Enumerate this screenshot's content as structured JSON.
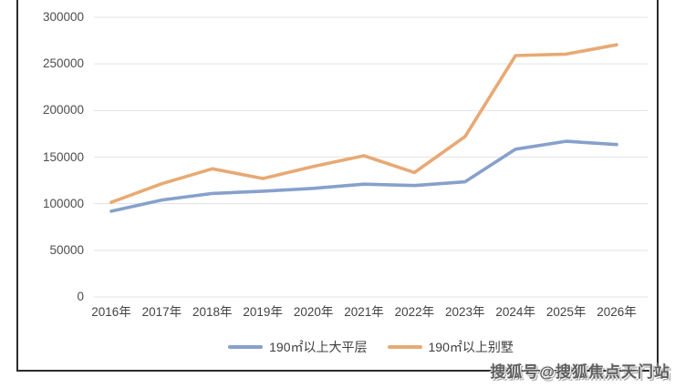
{
  "watermark": {
    "text": "搜狐号@搜狐焦点天门站"
  },
  "colors": {
    "grid": "#e3e3e3",
    "frame": "#2b2b2b",
    "tick_text": "#4d4d4d",
    "background": "#ffffff",
    "series_flat": "#87A0CC",
    "series_villa": "#E8A974"
  },
  "chart_data": {
    "type": "line",
    "title": "",
    "xlabel": "",
    "ylabel": "",
    "categories": [
      "2016年",
      "2017年",
      "2018年",
      "2019年",
      "2020年",
      "2021年",
      "2022年",
      "2023年",
      "2024年",
      "2025年",
      "2026年"
    ],
    "series": [
      {
        "name": "190㎡以上大平层",
        "color": "#87A0CC",
        "values": [
          92000,
          104000,
          111000,
          113500,
          116500,
          121000,
          119500,
          123500,
          158500,
          167000,
          163500
        ]
      },
      {
        "name": "190㎡以上别墅",
        "color": "#E8A974",
        "values": [
          101500,
          121500,
          137500,
          127000,
          140000,
          151500,
          133500,
          172000,
          259000,
          260500,
          270500
        ]
      }
    ],
    "ylim": [
      0,
      300000
    ],
    "yticks": [
      0,
      50000,
      100000,
      150000,
      200000,
      250000,
      300000
    ],
    "grid": true,
    "legend_position": "bottom"
  }
}
